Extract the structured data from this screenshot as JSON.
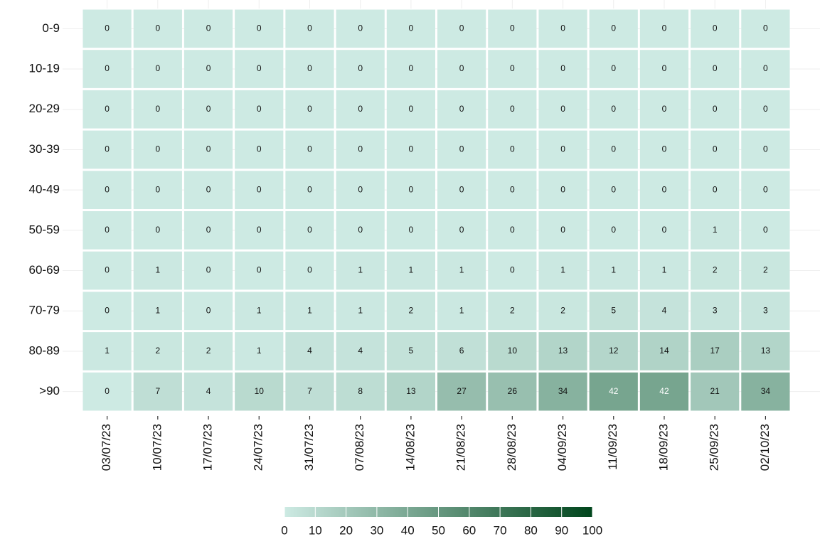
{
  "chart_data": {
    "type": "heatmap",
    "x": [
      "03/07/23",
      "10/07/23",
      "17/07/23",
      "24/07/23",
      "31/07/23",
      "07/08/23",
      "14/08/23",
      "21/08/23",
      "28/08/23",
      "04/09/23",
      "11/09/23",
      "18/09/23",
      "25/09/23",
      "02/10/23"
    ],
    "y": [
      "0-9",
      "10-19",
      "20-29",
      "30-39",
      "40-49",
      "50-59",
      "60-69",
      "70-79",
      "80-89",
      ">90"
    ],
    "values": [
      [
        0,
        0,
        0,
        0,
        0,
        0,
        0,
        0,
        0,
        0,
        0,
        0,
        0,
        0
      ],
      [
        0,
        0,
        0,
        0,
        0,
        0,
        0,
        0,
        0,
        0,
        0,
        0,
        0,
        0
      ],
      [
        0,
        0,
        0,
        0,
        0,
        0,
        0,
        0,
        0,
        0,
        0,
        0,
        0,
        0
      ],
      [
        0,
        0,
        0,
        0,
        0,
        0,
        0,
        0,
        0,
        0,
        0,
        0,
        0,
        0
      ],
      [
        0,
        0,
        0,
        0,
        0,
        0,
        0,
        0,
        0,
        0,
        0,
        0,
        0,
        0
      ],
      [
        0,
        0,
        0,
        0,
        0,
        0,
        0,
        0,
        0,
        0,
        0,
        0,
        1,
        0
      ],
      [
        0,
        1,
        0,
        0,
        0,
        1,
        1,
        1,
        0,
        1,
        1,
        1,
        2,
        2
      ],
      [
        0,
        1,
        0,
        1,
        1,
        1,
        2,
        1,
        2,
        2,
        5,
        4,
        3,
        3
      ],
      [
        1,
        2,
        2,
        1,
        4,
        4,
        5,
        6,
        10,
        13,
        12,
        14,
        17,
        13
      ],
      [
        0,
        7,
        4,
        10,
        7,
        8,
        13,
        27,
        26,
        34,
        42,
        42,
        21,
        34
      ]
    ],
    "colorscale": [
      "#cdeae3",
      "#00451c"
    ],
    "zlim": [
      0,
      100
    ],
    "zticks": [
      0,
      10,
      20,
      30,
      40,
      50,
      60,
      70,
      80,
      90,
      100
    ]
  }
}
